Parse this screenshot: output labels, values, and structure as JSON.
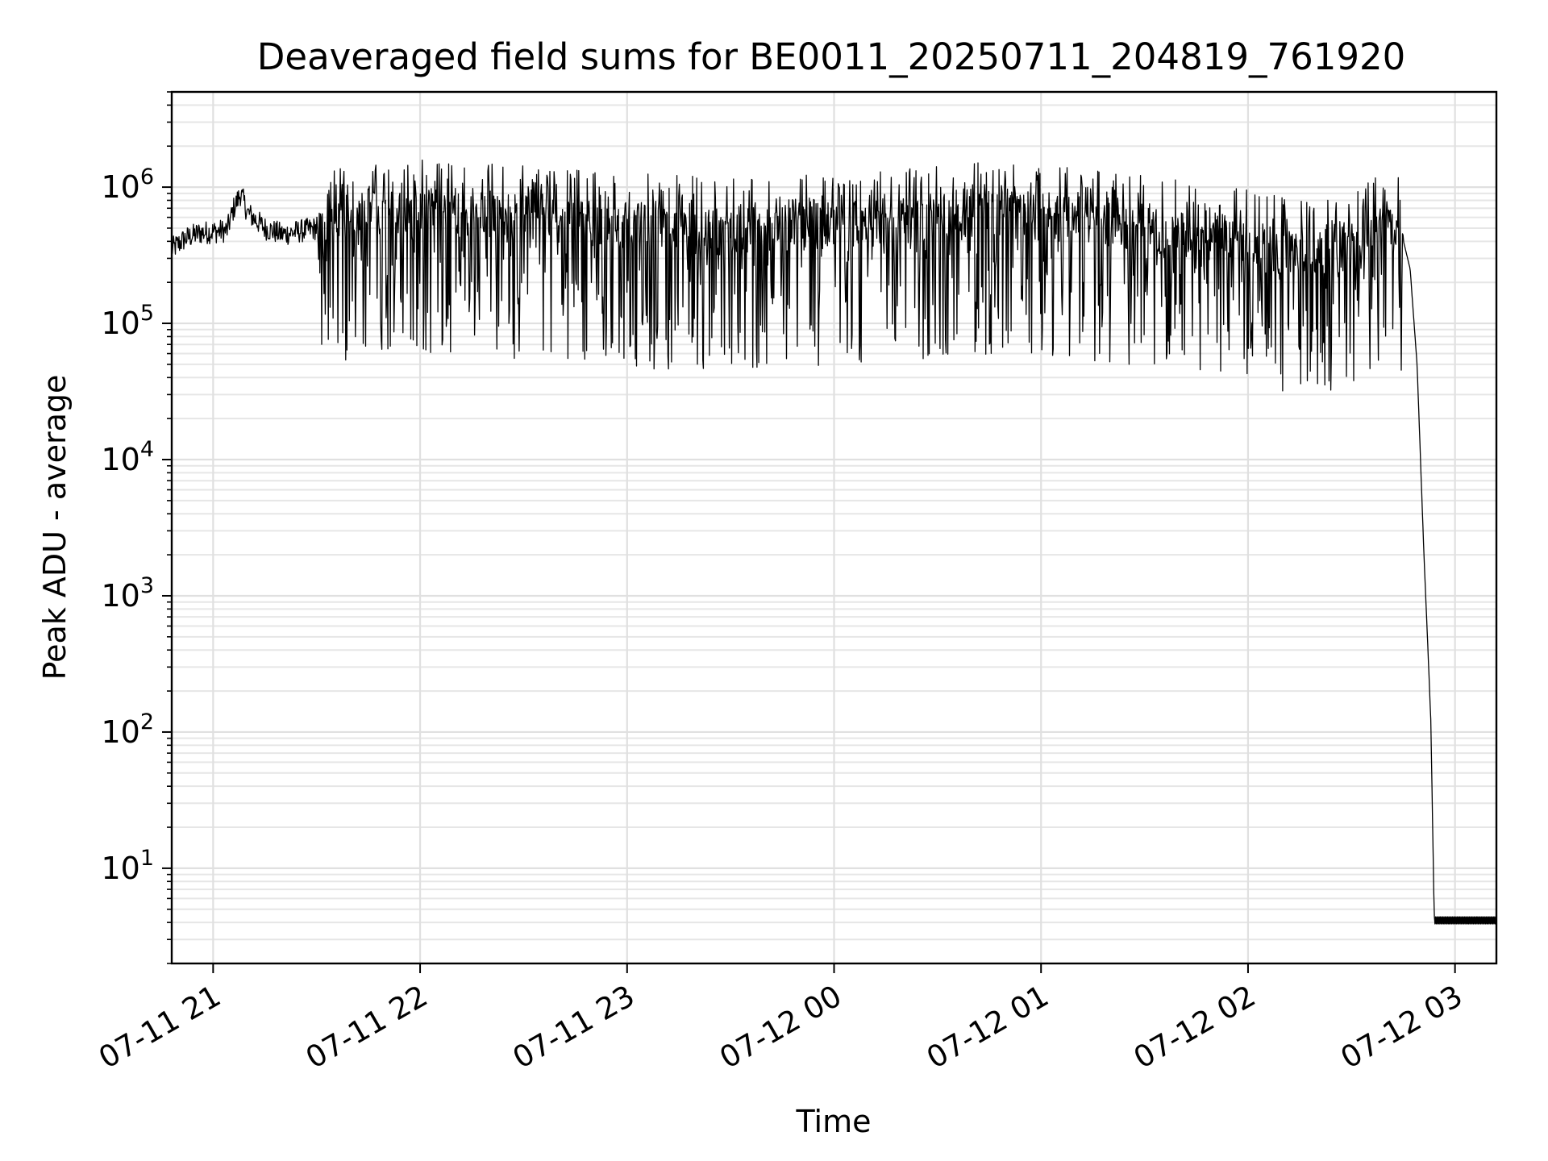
{
  "chart_data": {
    "type": "line",
    "title": "Deaveraged field sums for BE0011_20250711_204819_761920",
    "xlabel": "Time",
    "ylabel": "Peak ADU - average",
    "yscale": "log",
    "xlim": [
      "2025-07-11 20:48",
      "2025-07-12 03:12"
    ],
    "ylim": [
      2,
      5000000
    ],
    "x_ticks": [
      "07-11 21",
      "07-11 22",
      "07-11 23",
      "07-12 00",
      "07-12 01",
      "07-12 02",
      "07-12 03"
    ],
    "y_ticks": [
      {
        "base": "10",
        "exp": "1"
      },
      {
        "base": "10",
        "exp": "2"
      },
      {
        "base": "10",
        "exp": "3"
      },
      {
        "base": "10",
        "exp": "4"
      },
      {
        "base": "10",
        "exp": "5"
      },
      {
        "base": "10",
        "exp": "6"
      }
    ],
    "grid": "major and minor",
    "line_color": "#000000",
    "series": [
      {
        "values_desc": "dense jagged trace of per-field values",
        "points": [
          [
            "2025-07-11 20:48",
            350000
          ],
          [
            "2025-07-11 20:52",
            420000
          ],
          [
            "2025-07-11 20:56",
            460000
          ],
          [
            "2025-07-11 21:00",
            470000
          ],
          [
            "2025-07-11 21:04",
            480000
          ],
          [
            "2025-07-11 21:06",
            700000
          ],
          [
            "2025-07-11 21:08",
            900000
          ],
          [
            "2025-07-11 21:10",
            650000
          ],
          [
            "2025-07-11 21:15",
            500000
          ],
          [
            "2025-07-11 21:20",
            450000
          ],
          [
            "2025-07-11 21:30",
            500000
          ],
          [
            "2025-07-11 21:40",
            600000
          ],
          [
            "2025-07-11 21:50",
            650000
          ],
          [
            "2025-07-11 22:00",
            650000
          ],
          [
            "2025-07-11 22:15",
            620000
          ],
          [
            "2025-07-11 22:30",
            600000
          ],
          [
            "2025-07-11 22:45",
            560000
          ],
          [
            "2025-07-11 23:00",
            520000
          ],
          [
            "2025-07-11 23:15",
            500000
          ],
          [
            "2025-07-11 23:30",
            480000
          ],
          [
            "2025-07-11 23:45",
            500000
          ],
          [
            "2025-07-12 00:00",
            520000
          ],
          [
            "2025-07-12 00:15",
            560000
          ],
          [
            "2025-07-12 00:30",
            600000
          ],
          [
            "2025-07-12 00:45",
            620000
          ],
          [
            "2025-07-12 01:00",
            600000
          ],
          [
            "2025-07-12 01:15",
            560000
          ],
          [
            "2025-07-12 01:30",
            500000
          ],
          [
            "2025-07-12 01:45",
            450000
          ],
          [
            "2025-07-12 02:00",
            400000
          ],
          [
            "2025-07-12 02:10",
            340000
          ],
          [
            "2025-07-12 02:20",
            320000
          ],
          [
            "2025-07-12 02:30",
            360000
          ],
          [
            "2025-07-12 02:35",
            480000
          ],
          [
            "2025-07-12 02:40",
            560000
          ],
          [
            "2025-07-12 02:44",
            520000
          ],
          [
            "2025-07-12 02:47",
            250000
          ],
          [
            "2025-07-12 02:49",
            50000
          ],
          [
            "2025-07-12 02:50",
            10000
          ],
          [
            "2025-07-12 02:51",
            2000
          ],
          [
            "2025-07-12 02:52",
            500
          ],
          [
            "2025-07-12 02:53",
            120
          ],
          [
            "2025-07-12 02:54",
            4
          ],
          [
            "2025-07-12 03:12",
            4
          ]
        ]
      }
    ]
  }
}
